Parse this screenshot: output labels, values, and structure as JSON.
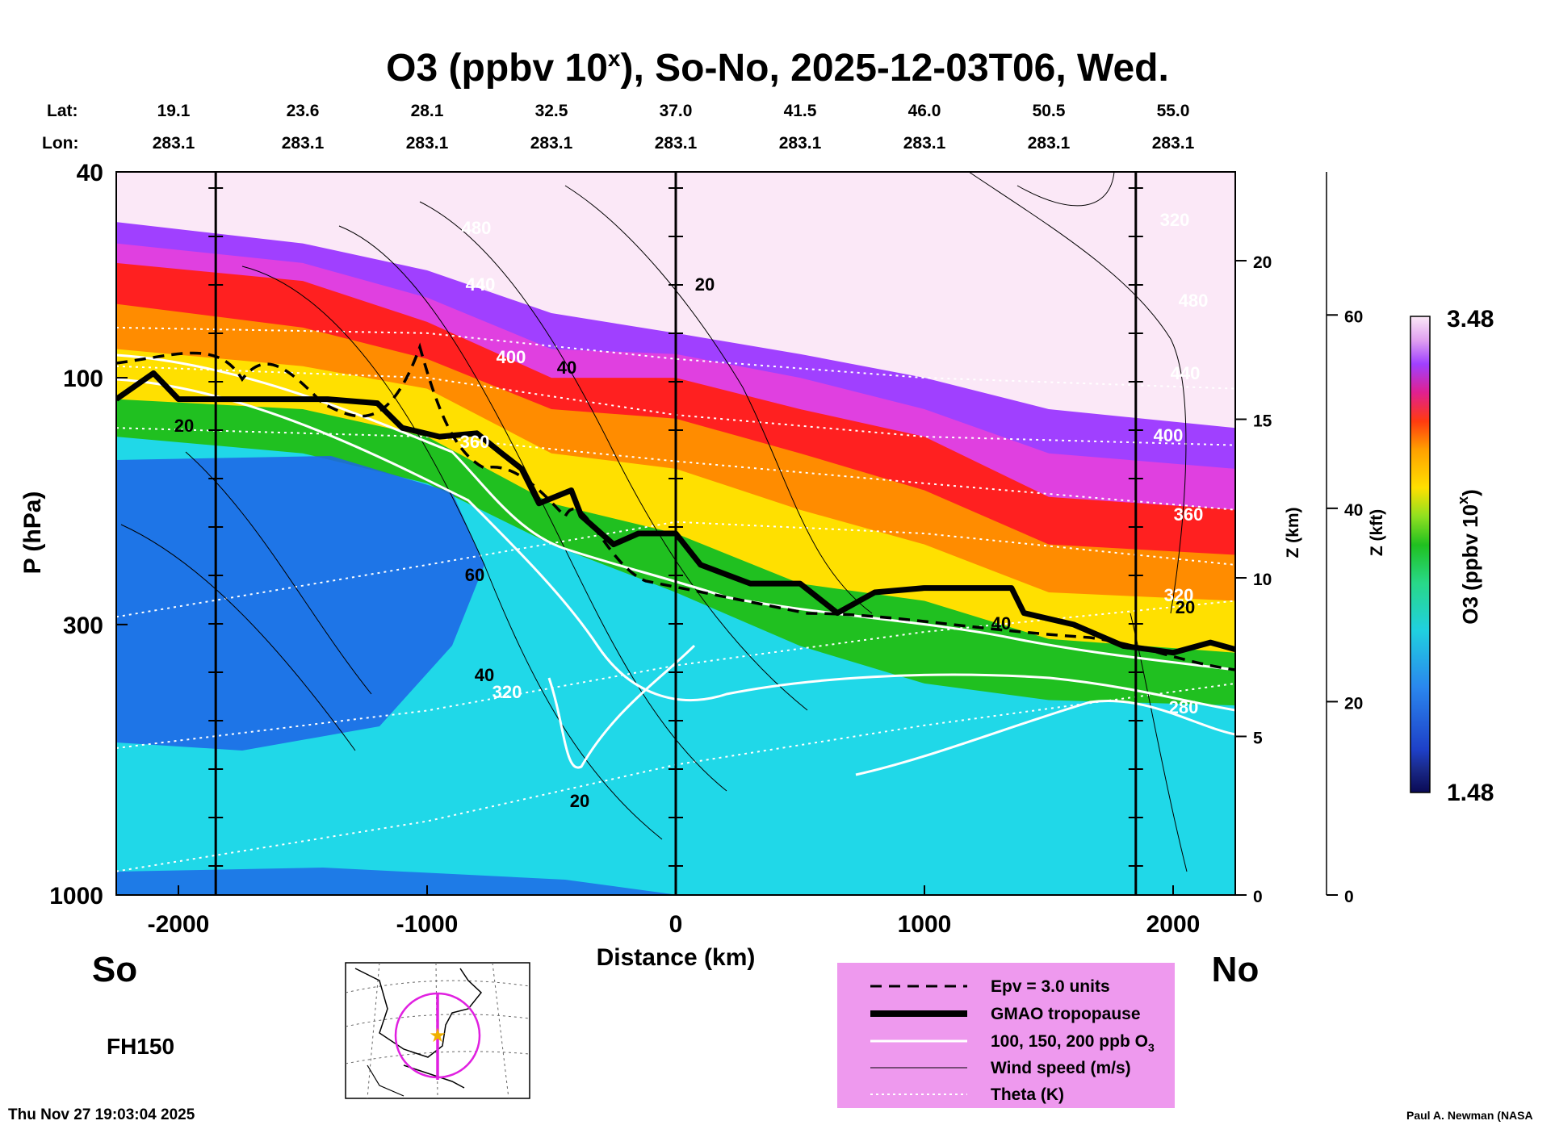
{
  "chart_data": {
    "type": "heatmap",
    "title": "O3 (ppbv 10",
    "title_sup": "x",
    "title_rest": "), So-No, 2025-12-03T06, Wed.",
    "xlabel": "Distance (km)",
    "ylabel": "P (hPa)",
    "y2label": "Z (km)",
    "y3label": "Z (kft)",
    "colorbar_label": "O3 (ppbv 10",
    "colorbar_label_sup": "x",
    "colorbar_label_rest": ")",
    "colorbar_range": [
      1.48,
      3.48
    ],
    "colorbar_max_label": "3.48",
    "colorbar_min_label": "1.48",
    "xlim": [
      -2250,
      2250
    ],
    "ylim": [
      1000,
      40
    ],
    "y_scale": "log",
    "x_ticks": [
      "-2000",
      "-1000",
      "0",
      "1000",
      "2000"
    ],
    "x_tick_values": [
      -2000,
      -1000,
      0,
      1000,
      2000
    ],
    "y_ticks": [
      "40",
      "100",
      "300",
      "1000"
    ],
    "y_tick_values": [
      40,
      100,
      300,
      1000
    ],
    "z_km_ticks": [
      "20",
      "15",
      "10",
      "5",
      "0"
    ],
    "z_km_values": [
      20,
      15,
      10,
      5,
      0
    ],
    "z_kft_ticks": [
      "60",
      "40",
      "20",
      "0"
    ],
    "z_kft_values": [
      60,
      40,
      20,
      0
    ],
    "lat_label": "Lat:",
    "lon_label": "Lon:",
    "lat_values": [
      "19.1",
      "23.6",
      "28.1",
      "32.5",
      "37.0",
      "41.5",
      "46.0",
      "50.5",
      "55.0"
    ],
    "lon_values": [
      "283.1",
      "283.1",
      "283.1",
      "283.1",
      "283.1",
      "283.1",
      "283.1",
      "283.1",
      "283.1"
    ],
    "lat_x_positions_km": [
      -2000,
      -1500,
      -1000,
      -500,
      0,
      500,
      1000,
      1500,
      2000
    ],
    "vertical_markers_km": [
      -1850,
      0,
      1850
    ],
    "theta_labels": [
      "480",
      "440",
      "400",
      "360",
      "320",
      "280",
      "400",
      "360",
      "320",
      "480",
      "440",
      "320"
    ],
    "wind_labels": [
      "20",
      "40",
      "60",
      "40",
      "20",
      "20",
      "40",
      "20"
    ],
    "tropopause_hPa": [
      [
        -2250,
        110
      ],
      [
        -2100,
        98
      ],
      [
        -2000,
        110
      ],
      [
        -1800,
        110
      ],
      [
        -1400,
        110
      ],
      [
        -1200,
        112
      ],
      [
        -1100,
        125
      ],
      [
        -950,
        130
      ],
      [
        -800,
        128
      ],
      [
        -700,
        140
      ],
      [
        -620,
        150
      ],
      [
        -550,
        175
      ],
      [
        -420,
        165
      ],
      [
        -380,
        185
      ],
      [
        -250,
        210
      ],
      [
        -150,
        200
      ],
      [
        0,
        200
      ],
      [
        100,
        230
      ],
      [
        300,
        250
      ],
      [
        500,
        250
      ],
      [
        650,
        285
      ],
      [
        800,
        260
      ],
      [
        1000,
        255
      ],
      [
        1350,
        255
      ],
      [
        1400,
        285
      ],
      [
        1600,
        300
      ],
      [
        1800,
        330
      ],
      [
        2000,
        340
      ],
      [
        2150,
        325
      ],
      [
        2250,
        335
      ]
    ],
    "legend": [
      {
        "label": "Epv = 3.0 units",
        "style": "dashed"
      },
      {
        "label": "GMAO tropopause",
        "style": "thick"
      },
      {
        "label": "100, 150, 200 ppb O",
        "sub": "3",
        "style": "white"
      },
      {
        "label": "Wind speed (m/s)",
        "style": "thin"
      },
      {
        "label": "Theta (K)",
        "style": "dotted"
      }
    ],
    "colors": {
      "top": "#fbe8f7",
      "violet": "#a040ff",
      "magenta": "#e040e0",
      "red": "#ff2020",
      "orange": "#ff8c00",
      "yellow": "#ffe000",
      "green": "#20c020",
      "cyan": "#20d8e8",
      "blue": "#1e64e6",
      "legend_bg": "#ee99ee"
    }
  },
  "labels": {
    "south": "So",
    "north": "No",
    "forecast_hour": "FH150",
    "timestamp": "Thu Nov 27 19:03:04 2025",
    "credit": "Paul A. Newman (NASA"
  }
}
